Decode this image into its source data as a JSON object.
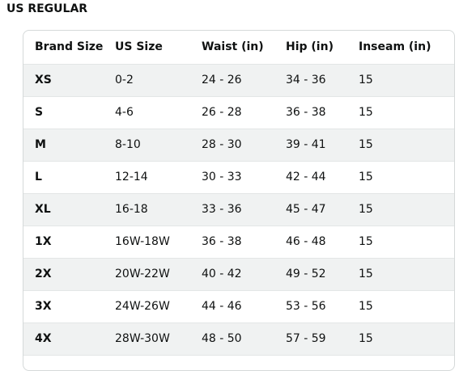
{
  "title": "US REGULAR",
  "table": {
    "header": [
      "Brand Size",
      "US Size",
      "Waist (in)",
      "Hip (in)",
      "Inseam (in)"
    ],
    "rows": [
      [
        "XS",
        "0-2",
        "24 - 26",
        "34 - 36",
        "15"
      ],
      [
        "S",
        "4-6",
        "26 - 28",
        "36 - 38",
        "15"
      ],
      [
        "M",
        "8-10",
        "28 - 30",
        "39 - 41",
        "15"
      ],
      [
        "L",
        "12-14",
        "30 - 33",
        "42 - 44",
        "15"
      ],
      [
        "XL",
        "16-18",
        "33 - 36",
        "45 - 47",
        "15"
      ],
      [
        "1X",
        "16W-18W",
        "36 - 38",
        "46 - 48",
        "15"
      ],
      [
        "2X",
        "20W-22W",
        "40 - 42",
        "49 - 52",
        "15"
      ],
      [
        "3X",
        "24W-26W",
        "44 - 46",
        "53 - 56",
        "15"
      ],
      [
        "4X",
        "28W-30W",
        "48 - 50",
        "57 - 59",
        "15"
      ]
    ]
  }
}
